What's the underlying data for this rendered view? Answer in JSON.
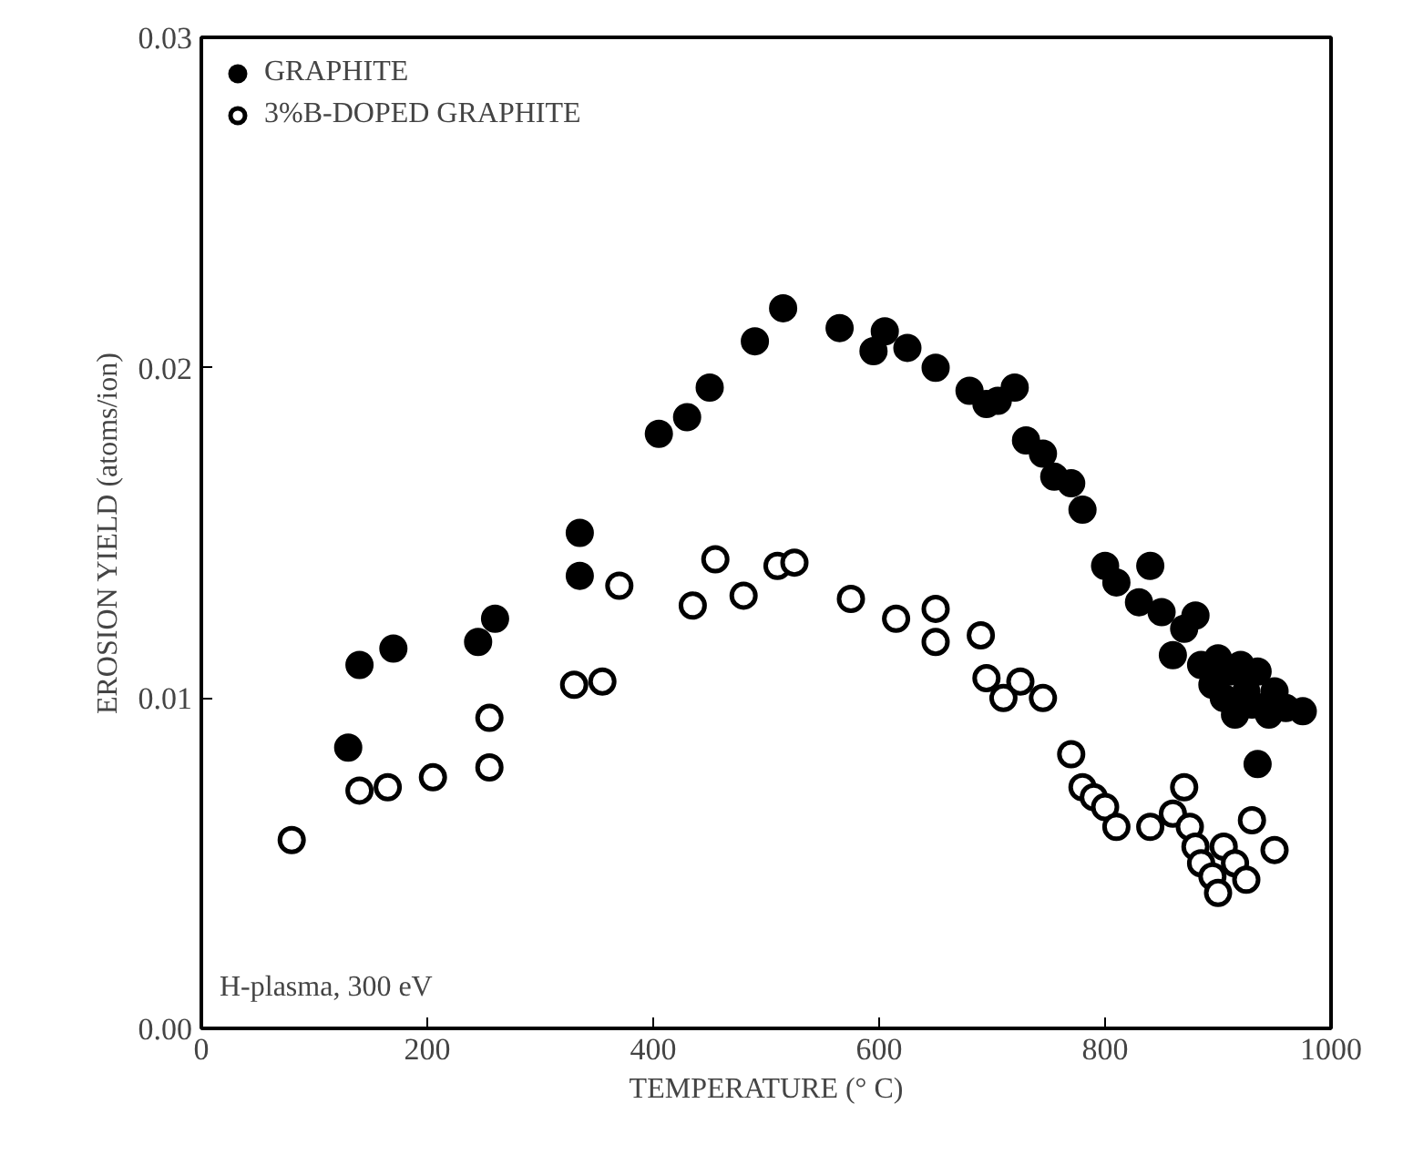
{
  "chart_data": {
    "type": "scatter",
    "xlabel": "TEMPERATURE (° C)",
    "ylabel": "EROSION YIELD (atoms/ion)",
    "xlim": [
      0,
      1000
    ],
    "xticks": [
      0,
      200,
      400,
      600,
      800,
      1000
    ],
    "ylim": [
      0,
      0.03
    ],
    "yticks": [
      {
        "value": 0,
        "label": "0.00"
      },
      {
        "value": 0.01,
        "label": "0.01"
      },
      {
        "value": 0.02,
        "label": "0.02"
      },
      {
        "value": 0.03,
        "label": "0.03"
      }
    ],
    "grid": false,
    "legend": "top left",
    "annotations": [
      "H-plasma, 300 eV"
    ],
    "series": [
      {
        "name": "GRAPHITE",
        "color": "#000000",
        "marker": "circle",
        "x": [
          130,
          140,
          170,
          245,
          260,
          335,
          335,
          405,
          430,
          450,
          490,
          515,
          565,
          595,
          605,
          625,
          650,
          680,
          695,
          705,
          720,
          730,
          745,
          755,
          770,
          780,
          800,
          810,
          830,
          840,
          850,
          860,
          870,
          880,
          885,
          895,
          900,
          905,
          910,
          915,
          920,
          925,
          930,
          935,
          945,
          950,
          960,
          975,
          935
        ],
        "values": [
          0.0085,
          0.011,
          0.0115,
          0.0117,
          0.0124,
          0.0137,
          0.015,
          0.018,
          0.0185,
          0.0194,
          0.0208,
          0.0218,
          0.0212,
          0.0205,
          0.0211,
          0.0206,
          0.02,
          0.0193,
          0.0189,
          0.019,
          0.0194,
          0.0178,
          0.0174,
          0.0167,
          0.0165,
          0.0157,
          0.014,
          0.0135,
          0.0129,
          0.014,
          0.0126,
          0.0113,
          0.0121,
          0.0125,
          0.011,
          0.0104,
          0.0112,
          0.01,
          0.0108,
          0.0095,
          0.011,
          0.0102,
          0.0098,
          0.0108,
          0.0095,
          0.0102,
          0.0097,
          0.0096,
          0.008
        ]
      },
      {
        "name": "3%B-DOPED GRAPHITE",
        "color": "#000000",
        "marker": "open_circle",
        "x": [
          80,
          140,
          165,
          205,
          255,
          255,
          330,
          355,
          370,
          435,
          455,
          480,
          510,
          525,
          575,
          615,
          650,
          650,
          690,
          695,
          710,
          725,
          745,
          770,
          780,
          790,
          800,
          810,
          840,
          860,
          870,
          875,
          880,
          885,
          895,
          900,
          905,
          915,
          925,
          930,
          950
        ],
        "values": [
          0.0057,
          0.0072,
          0.0073,
          0.0076,
          0.0079,
          0.0094,
          0.0104,
          0.0105,
          0.0134,
          0.0128,
          0.0142,
          0.0131,
          0.014,
          0.0141,
          0.013,
          0.0124,
          0.0127,
          0.0117,
          0.0119,
          0.0106,
          0.01,
          0.0105,
          0.01,
          0.0083,
          0.0073,
          0.007,
          0.0067,
          0.0061,
          0.0061,
          0.0065,
          0.0073,
          0.0061,
          0.0055,
          0.005,
          0.0046,
          0.0041,
          0.0055,
          0.005,
          0.0045,
          0.0063,
          0.0054
        ]
      }
    ]
  }
}
